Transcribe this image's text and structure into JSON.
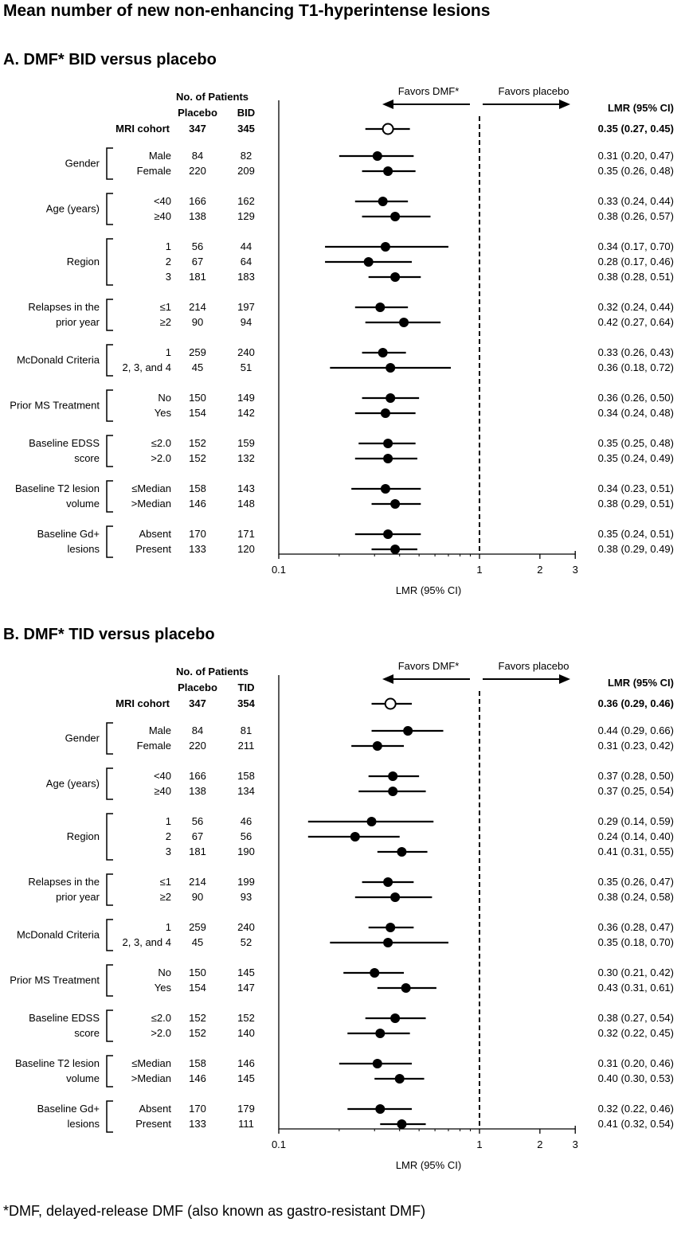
{
  "title": "Mean number of new non-enhancing T1-hyperintense lesions",
  "footnote": "*DMF, delayed-release DMF (also known as gastro-resistant DMF)",
  "chart_data": [
    {
      "type": "forest",
      "panel_title": "A. DMF* BID versus placebo",
      "xlabel": "LMR  (95% CI)",
      "xscale": "log",
      "xlim": [
        0.1,
        3
      ],
      "xticks": [
        "0.1",
        "1",
        "2",
        "3"
      ],
      "reference_line": 1,
      "favors_left": "Favors DMF*",
      "favors_right": "Favors placebo",
      "patients_header": "No. of Patients",
      "col_placebo": "Placebo",
      "col_treat": "BID",
      "lmr_header": "LMR (95% CI)",
      "overall": {
        "label": "MRI cohort",
        "placebo": "347",
        "treat": "345",
        "est": 0.35,
        "lo": 0.27,
        "hi": 0.45,
        "text": "0.35 (0.27, 0.45)"
      },
      "groups": [
        {
          "name": [
            "Gender"
          ],
          "rows": [
            {
              "sub": "Male",
              "placebo": "84",
              "treat": "82",
              "est": 0.31,
              "lo": 0.2,
              "hi": 0.47,
              "text": "0.31 (0.20, 0.47)"
            },
            {
              "sub": "Female",
              "placebo": "220",
              "treat": "209",
              "est": 0.35,
              "lo": 0.26,
              "hi": 0.48,
              "text": "0.35 (0.26, 0.48)"
            }
          ]
        },
        {
          "name": [
            "Age (years)"
          ],
          "rows": [
            {
              "sub": "<40",
              "placebo": "166",
              "treat": "162",
              "est": 0.33,
              "lo": 0.24,
              "hi": 0.44,
              "text": "0.33 (0.24, 0.44)"
            },
            {
              "sub": "≥40",
              "placebo": "138",
              "treat": "129",
              "est": 0.38,
              "lo": 0.26,
              "hi": 0.57,
              "text": "0.38 (0.26, 0.57)"
            }
          ]
        },
        {
          "name": [
            "Region"
          ],
          "rows": [
            {
              "sub": "1",
              "placebo": "56",
              "treat": "44",
              "est": 0.34,
              "lo": 0.17,
              "hi": 0.7,
              "text": "0.34 (0.17, 0.70)"
            },
            {
              "sub": "2",
              "placebo": "67",
              "treat": "64",
              "est": 0.28,
              "lo": 0.17,
              "hi": 0.46,
              "text": "0.28 (0.17, 0.46)"
            },
            {
              "sub": "3",
              "placebo": "181",
              "treat": "183",
              "est": 0.38,
              "lo": 0.28,
              "hi": 0.51,
              "text": "0.38 (0.28, 0.51)"
            }
          ]
        },
        {
          "name": [
            "Relapses in the",
            "prior year"
          ],
          "rows": [
            {
              "sub": "≤1",
              "placebo": "214",
              "treat": "197",
              "est": 0.32,
              "lo": 0.24,
              "hi": 0.44,
              "text": "0.32 (0.24, 0.44)"
            },
            {
              "sub": "≥2",
              "placebo": "90",
              "treat": "94",
              "est": 0.42,
              "lo": 0.27,
              "hi": 0.64,
              "text": "0.42 (0.27, 0.64)"
            }
          ]
        },
        {
          "name": [
            "McDonald Criteria"
          ],
          "rows": [
            {
              "sub": "1",
              "placebo": "259",
              "treat": "240",
              "est": 0.33,
              "lo": 0.26,
              "hi": 0.43,
              "text": "0.33 (0.26, 0.43)"
            },
            {
              "sub": "2, 3, and 4",
              "placebo": "45",
              "treat": "51",
              "est": 0.36,
              "lo": 0.18,
              "hi": 0.72,
              "text": "0.36 (0.18, 0.72)"
            }
          ]
        },
        {
          "name": [
            "Prior MS Treatment"
          ],
          "rows": [
            {
              "sub": "No",
              "placebo": "150",
              "treat": "149",
              "est": 0.36,
              "lo": 0.26,
              "hi": 0.5,
              "text": "0.36 (0.26, 0.50)"
            },
            {
              "sub": "Yes",
              "placebo": "154",
              "treat": "142",
              "est": 0.34,
              "lo": 0.24,
              "hi": 0.48,
              "text": "0.34 (0.24, 0.48)"
            }
          ]
        },
        {
          "name": [
            "Baseline EDSS",
            "score"
          ],
          "rows": [
            {
              "sub": "≤2.0",
              "placebo": "152",
              "treat": "159",
              "est": 0.35,
              "lo": 0.25,
              "hi": 0.48,
              "text": "0.35 (0.25, 0.48)"
            },
            {
              "sub": ">2.0",
              "placebo": "152",
              "treat": "132",
              "est": 0.35,
              "lo": 0.24,
              "hi": 0.49,
              "text": "0.35 (0.24, 0.49)"
            }
          ]
        },
        {
          "name": [
            "Baseline T2 lesion",
            "volume"
          ],
          "rows": [
            {
              "sub": "≤Median",
              "placebo": "158",
              "treat": "143",
              "est": 0.34,
              "lo": 0.23,
              "hi": 0.51,
              "text": "0.34 (0.23, 0.51)"
            },
            {
              "sub": ">Median",
              "placebo": "146",
              "treat": "148",
              "est": 0.38,
              "lo": 0.29,
              "hi": 0.51,
              "text": "0.38 (0.29, 0.51)"
            }
          ]
        },
        {
          "name": [
            "Baseline Gd+",
            "lesions"
          ],
          "rows": [
            {
              "sub": "Absent",
              "placebo": "170",
              "treat": "171",
              "est": 0.35,
              "lo": 0.24,
              "hi": 0.51,
              "text": "0.35 (0.24, 0.51)"
            },
            {
              "sub": "Present",
              "placebo": "133",
              "treat": "120",
              "est": 0.38,
              "lo": 0.29,
              "hi": 0.49,
              "text": "0.38 (0.29, 0.49)"
            }
          ]
        }
      ]
    },
    {
      "type": "forest",
      "panel_title": "B. DMF* TID versus placebo",
      "xlabel": "LMR (95% CI)",
      "xscale": "log",
      "xlim": [
        0.1,
        3
      ],
      "xticks": [
        "0.1",
        "1",
        "2",
        "3"
      ],
      "reference_line": 1,
      "favors_left": "Favors DMF*",
      "favors_right": "Favors placebo",
      "patients_header": "No. of Patients",
      "col_placebo": "Placebo",
      "col_treat": "TID",
      "lmr_header": "LMR (95% CI)",
      "overall": {
        "label": "MRI cohort",
        "placebo": "347",
        "treat": "354",
        "est": 0.36,
        "lo": 0.29,
        "hi": 0.46,
        "text": "0.36 (0.29, 0.46)"
      },
      "groups": [
        {
          "name": [
            "Gender"
          ],
          "rows": [
            {
              "sub": "Male",
              "placebo": "84",
              "treat": "81",
              "est": 0.44,
              "lo": 0.29,
              "hi": 0.66,
              "text": "0.44 (0.29, 0.66)"
            },
            {
              "sub": "Female",
              "placebo": "220",
              "treat": "211",
              "est": 0.31,
              "lo": 0.23,
              "hi": 0.42,
              "text": "0.31 (0.23, 0.42)"
            }
          ]
        },
        {
          "name": [
            "Age (years)"
          ],
          "rows": [
            {
              "sub": "<40",
              "placebo": "166",
              "treat": "158",
              "est": 0.37,
              "lo": 0.28,
              "hi": 0.5,
              "text": "0.37 (0.28, 0.50)"
            },
            {
              "sub": "≥40",
              "placebo": "138",
              "treat": "134",
              "est": 0.37,
              "lo": 0.25,
              "hi": 0.54,
              "text": "0.37 (0.25, 0.54)"
            }
          ]
        },
        {
          "name": [
            "Region"
          ],
          "rows": [
            {
              "sub": "1",
              "placebo": "56",
              "treat": "46",
              "est": 0.29,
              "lo": 0.14,
              "hi": 0.59,
              "text": "0.29 (0.14, 0.59)"
            },
            {
              "sub": "2",
              "placebo": "67",
              "treat": "56",
              "est": 0.24,
              "lo": 0.14,
              "hi": 0.4,
              "text": "0.24 (0.14, 0.40)"
            },
            {
              "sub": "3",
              "placebo": "181",
              "treat": "190",
              "est": 0.41,
              "lo": 0.31,
              "hi": 0.55,
              "text": "0.41 (0.31, 0.55)"
            }
          ]
        },
        {
          "name": [
            "Relapses in the",
            "prior year"
          ],
          "rows": [
            {
              "sub": "≤1",
              "placebo": "214",
              "treat": "199",
              "est": 0.35,
              "lo": 0.26,
              "hi": 0.47,
              "text": "0.35 (0.26, 0.47)"
            },
            {
              "sub": "≥2",
              "placebo": "90",
              "treat": "93",
              "est": 0.38,
              "lo": 0.24,
              "hi": 0.58,
              "text": "0.38 (0.24, 0.58)"
            }
          ]
        },
        {
          "name": [
            "McDonald Criteria"
          ],
          "rows": [
            {
              "sub": "1",
              "placebo": "259",
              "treat": "240",
              "est": 0.36,
              "lo": 0.28,
              "hi": 0.47,
              "text": "0.36 (0.28, 0.47)"
            },
            {
              "sub": "2, 3, and 4",
              "placebo": "45",
              "treat": "52",
              "est": 0.35,
              "lo": 0.18,
              "hi": 0.7,
              "text": "0.35 (0.18, 0.70)"
            }
          ]
        },
        {
          "name": [
            "Prior MS Treatment"
          ],
          "rows": [
            {
              "sub": "No",
              "placebo": "150",
              "treat": "145",
              "est": 0.3,
              "lo": 0.21,
              "hi": 0.42,
              "text": "0.30 (0.21, 0.42)"
            },
            {
              "sub": "Yes",
              "placebo": "154",
              "treat": "147",
              "est": 0.43,
              "lo": 0.31,
              "hi": 0.61,
              "text": "0.43 (0.31, 0.61)"
            }
          ]
        },
        {
          "name": [
            "Baseline EDSS",
            "score"
          ],
          "rows": [
            {
              "sub": "≤2.0",
              "placebo": "152",
              "treat": "152",
              "est": 0.38,
              "lo": 0.27,
              "hi": 0.54,
              "text": "0.38 (0.27, 0.54)"
            },
            {
              "sub": ">2.0",
              "placebo": "152",
              "treat": "140",
              "est": 0.32,
              "lo": 0.22,
              "hi": 0.45,
              "text": "0.32 (0.22, 0.45)"
            }
          ]
        },
        {
          "name": [
            "Baseline T2 lesion",
            "volume"
          ],
          "rows": [
            {
              "sub": "≤Median",
              "placebo": "158",
              "treat": "146",
              "est": 0.31,
              "lo": 0.2,
              "hi": 0.46,
              "text": "0.31 (0.20, 0.46)"
            },
            {
              "sub": ">Median",
              "placebo": "146",
              "treat": "145",
              "est": 0.4,
              "lo": 0.3,
              "hi": 0.53,
              "text": "0.40 (0.30, 0.53)"
            }
          ]
        },
        {
          "name": [
            "Baseline Gd+",
            "lesions"
          ],
          "rows": [
            {
              "sub": "Absent",
              "placebo": "170",
              "treat": "179",
              "est": 0.32,
              "lo": 0.22,
              "hi": 0.46,
              "text": "0.32 (0.22, 0.46)"
            },
            {
              "sub": "Present",
              "placebo": "133",
              "treat": "111",
              "est": 0.41,
              "lo": 0.32,
              "hi": 0.54,
              "text": "0.41 (0.32, 0.54)"
            }
          ]
        }
      ]
    }
  ]
}
